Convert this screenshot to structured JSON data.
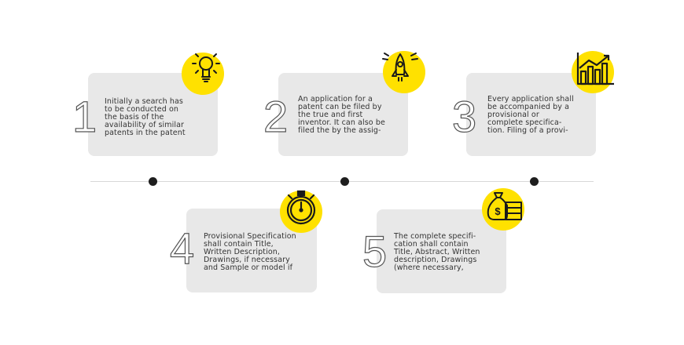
{
  "steps": [
    {
      "number": "1",
      "icon": "lightbulb-icon",
      "text": "Initially a search has\nto be conducted on\nthe basis of the\navailability of similar\npatents in the patent"
    },
    {
      "number": "2",
      "icon": "rocket-icon",
      "text": "An application for a\npatent can be filed by\nthe true and first\ninventor. It can also be\nfiled the by the assig-"
    },
    {
      "number": "3",
      "icon": "growth-chart-icon",
      "text": "Every application shall\nbe accompanied by a\nprovisional or\ncomplete specifica-\ntion. Filing of a provi-"
    },
    {
      "number": "4",
      "icon": "stopwatch-icon",
      "text": "Provisional Specification\nshall contain Title,\nWritten Description,\nDrawings, if necessary\nand Sample or model if"
    },
    {
      "number": "5",
      "icon": "money-bag-icon",
      "text": "The complete specifi-\ncation shall contain\nTitle, Abstract, Written\ndescription, Drawings\n(where necessary,"
    }
  ],
  "colors": {
    "accent": "#ffe100",
    "card": "#e8e8e8",
    "dot": "#1e1e1e"
  }
}
